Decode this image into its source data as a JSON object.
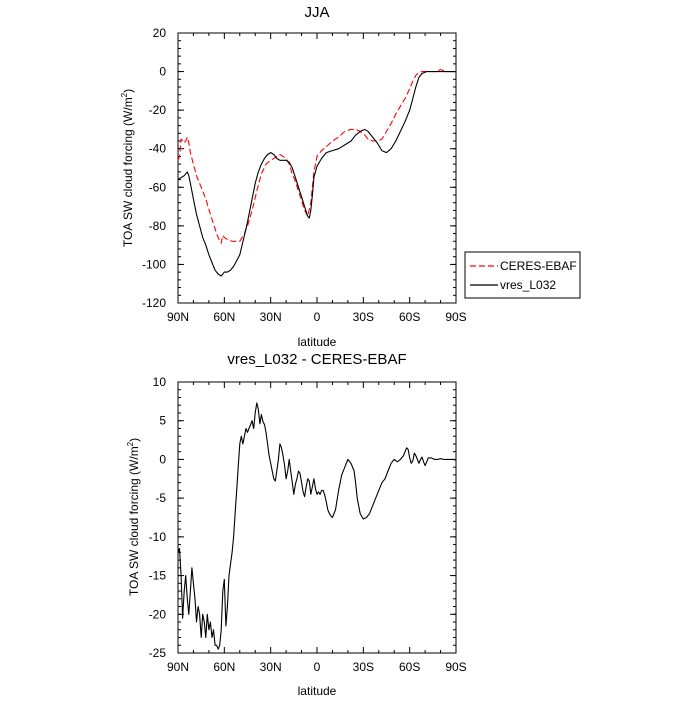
{
  "chart_data": [
    {
      "type": "line",
      "title": "JJA",
      "xlabel": "latitude",
      "ylabel": "TOA SW cloud forcing (W/m",
      "ylabel_sup": "2",
      "ylabel_end": ")",
      "xlim": [
        90,
        -90
      ],
      "ylim": [
        -120,
        20
      ],
      "xticks": [
        90,
        60,
        30,
        0,
        -30,
        -60,
        -90
      ],
      "xtick_labels": [
        "90N",
        "60N",
        "30N",
        "0",
        "30S",
        "60S",
        "90S"
      ],
      "yticks": [
        20,
        0,
        -20,
        -40,
        -60,
        -80,
        -100,
        -120
      ],
      "ytick_labels": [
        "20",
        "0",
        "-20",
        "-40",
        "-60",
        "-80",
        "-100",
        "-120"
      ],
      "grid": false,
      "legend": {
        "placement": "right",
        "entries": [
          "CERES-EBAF",
          "vres_L032"
        ]
      },
      "series": [
        {
          "name": "CERES-EBAF",
          "color": "#ff0000",
          "dash": "dashed",
          "x": [
            90,
            89,
            88,
            87,
            86,
            85,
            84,
            83,
            82,
            80,
            78,
            75,
            72,
            69,
            67,
            65,
            63,
            62,
            61,
            60,
            58,
            55,
            53,
            50,
            47,
            45,
            42,
            39,
            36,
            33,
            30,
            28,
            26,
            24,
            22,
            20,
            18,
            16,
            14,
            12,
            10,
            8,
            6,
            4,
            2,
            0,
            -3,
            -6,
            -10,
            -14,
            -18,
            -22,
            -25,
            -28,
            -31,
            -33,
            -36,
            -39,
            -42,
            -45,
            -48,
            -51,
            -54,
            -57,
            -60,
            -62,
            -64,
            -66,
            -68,
            -71,
            -74,
            -77,
            -80,
            -84,
            -87,
            -90
          ],
          "y": [
            -46,
            -44,
            -35,
            -36,
            -37,
            -36,
            -34,
            -37,
            -42,
            -48,
            -54,
            -60,
            -66,
            -74,
            -79,
            -84,
            -88,
            -89,
            -85,
            -86,
            -87,
            -88,
            -88,
            -88,
            -84,
            -80,
            -72,
            -62,
            -53,
            -48,
            -46,
            -45,
            -44,
            -43,
            -44,
            -45,
            -48,
            -53,
            -57,
            -62,
            -67,
            -72,
            -75,
            -68,
            -52,
            -44,
            -41,
            -39,
            -36,
            -34,
            -31,
            -30,
            -30,
            -31,
            -33,
            -35,
            -36,
            -36,
            -35,
            -31,
            -27,
            -22,
            -18,
            -14,
            -9,
            -5,
            -2,
            -0.5,
            0,
            0,
            0,
            0,
            1,
            0,
            0,
            0
          ]
        },
        {
          "name": "vres_L032",
          "color": "#000000",
          "dash": "solid",
          "x": [
            90,
            88,
            86,
            85,
            84,
            83,
            82,
            80,
            78,
            76,
            74,
            72,
            70,
            68,
            67,
            66,
            64,
            62,
            61,
            60,
            58,
            56,
            54,
            52,
            50,
            47,
            45,
            42,
            40,
            38,
            36,
            34,
            32,
            30,
            28,
            26,
            24,
            22,
            20,
            18,
            16,
            14,
            12,
            10,
            8,
            6,
            5,
            4,
            3,
            2,
            0,
            -3,
            -6,
            -10,
            -14,
            -18,
            -22,
            -25,
            -28,
            -31,
            -33,
            -36,
            -39,
            -42,
            -45,
            -48,
            -51,
            -54,
            -57,
            -60,
            -62,
            -64,
            -66,
            -68,
            -71,
            -74,
            -77,
            -80,
            -84,
            -87,
            -90
          ],
          "y": [
            -56,
            -55,
            -54,
            -53,
            -52,
            -54,
            -58,
            -66,
            -74,
            -80,
            -86,
            -90,
            -95,
            -99,
            -101,
            -103,
            -105,
            -106,
            -105,
            -104,
            -104,
            -103,
            -101,
            -98,
            -95,
            -85,
            -78,
            -66,
            -58,
            -52,
            -48,
            -45,
            -43,
            -42,
            -43,
            -45,
            -46,
            -46,
            -46,
            -47,
            -50,
            -55,
            -60,
            -65,
            -70,
            -75,
            -76,
            -72,
            -64,
            -55,
            -49,
            -45,
            -42,
            -41,
            -40,
            -38,
            -36,
            -33,
            -31,
            -30,
            -31,
            -34,
            -37,
            -41,
            -42,
            -40,
            -36,
            -31,
            -26,
            -20,
            -14,
            -8,
            -3,
            -1,
            0,
            0,
            0,
            0,
            0,
            0,
            0
          ]
        }
      ]
    },
    {
      "type": "line",
      "title": "vres_L032 - CERES-EBAF",
      "xlabel": "latitude",
      "ylabel": "TOA SW cloud forcing (W/m",
      "ylabel_sup": "2",
      "ylabel_end": ")",
      "xlim": [
        90,
        -90
      ],
      "ylim": [
        -25,
        10
      ],
      "xticks": [
        90,
        60,
        30,
        0,
        -30,
        -60,
        -90
      ],
      "xtick_labels": [
        "90N",
        "60N",
        "30N",
        "0",
        "30S",
        "60S",
        "90S"
      ],
      "yticks": [
        10,
        5,
        0,
        -5,
        -10,
        -15,
        -20,
        -25
      ],
      "ytick_labels": [
        "10",
        "5",
        "0",
        "-5",
        "-10",
        "-15",
        "-20",
        "-25"
      ],
      "grid": false,
      "series": [
        {
          "color": "#000000",
          "dash": "solid",
          "x": [
            90,
            89,
            88,
            87,
            86,
            85,
            84,
            83,
            82,
            81,
            80,
            79,
            78,
            77,
            76,
            75,
            74,
            73,
            72,
            71,
            70,
            69,
            68,
            67,
            66,
            65,
            64,
            63,
            62,
            61,
            60,
            59,
            58,
            57,
            56,
            55,
            54,
            53,
            52,
            51,
            50,
            49,
            48,
            47,
            46,
            45,
            44,
            43,
            42,
            41,
            40,
            39,
            38,
            37,
            36,
            35,
            34,
            33,
            32,
            31,
            30,
            29,
            28,
            27,
            26,
            25,
            24,
            23,
            22,
            21,
            20,
            19,
            18,
            17,
            16,
            15,
            14,
            13,
            12,
            11,
            10,
            9,
            8,
            7,
            6,
            5,
            4,
            3,
            2,
            1,
            0,
            -1,
            -2,
            -3,
            -4,
            -5,
            -6,
            -7,
            -8,
            -9,
            -10,
            -12,
            -14,
            -16,
            -18,
            -20,
            -22,
            -24,
            -25,
            -26,
            -28,
            -30,
            -32,
            -34,
            -36,
            -38,
            -40,
            -42,
            -44,
            -46,
            -48,
            -50,
            -52,
            -54,
            -56,
            -58,
            -59,
            -60,
            -61,
            -62,
            -63,
            -64,
            -65,
            -66,
            -67,
            -68,
            -69,
            -70,
            -71,
            -72,
            -74,
            -76,
            -78,
            -80,
            -82,
            -84,
            -86,
            -88,
            -90
          ],
          "y": [
            -12,
            -11.5,
            -15,
            -20.5,
            -17,
            -15,
            -18,
            -20,
            -17,
            -14,
            -16,
            -18,
            -21,
            -19,
            -20,
            -23,
            -20,
            -21,
            -23,
            -20,
            -22,
            -21,
            -23,
            -22,
            -24,
            -24,
            -24.5,
            -24,
            -22,
            -17,
            -15.5,
            -21.5,
            -19,
            -15,
            -13.5,
            -12,
            -10,
            -7,
            -4,
            -1,
            2,
            3,
            2,
            3,
            4,
            3.5,
            4,
            4.5,
            5,
            4,
            6,
            7.3,
            6.5,
            4.6,
            5.8,
            4.9,
            4.5,
            3.5,
            2,
            0.5,
            -0.5,
            -1.5,
            -2.5,
            -2.8,
            -1.5,
            0,
            2,
            1.5,
            0.5,
            -0.8,
            -2.5,
            -1.5,
            0,
            -1.5,
            -3,
            -4.5,
            -3.2,
            -2.5,
            -1.5,
            -1.8,
            -3,
            -4.2,
            -4.8,
            -3.5,
            -2.5,
            -2.8,
            -4.5,
            -3.5,
            -2.5,
            -3.8,
            -4.5,
            -4.2,
            -4.5,
            -4,
            -4,
            -4.6,
            -5.5,
            -6.5,
            -7,
            -7.3,
            -7.5,
            -6.5,
            -4,
            -2,
            -1,
            0,
            -0.5,
            -1.5,
            -3,
            -5,
            -7,
            -7.7,
            -7.5,
            -7,
            -6,
            -5,
            -4,
            -3,
            -2.5,
            -1.5,
            -0.5,
            0,
            -0.3,
            0,
            0.5,
            1.5,
            1.3,
            0.2,
            -0.5,
            -0.2,
            0.8,
            0.5,
            0,
            -0.5,
            0,
            0.3,
            -0.3,
            -0.8,
            -0.3,
            0.2,
            0.2,
            0,
            0,
            0.1,
            0,
            0,
            0,
            0,
            -0.1
          ]
        }
      ]
    }
  ]
}
